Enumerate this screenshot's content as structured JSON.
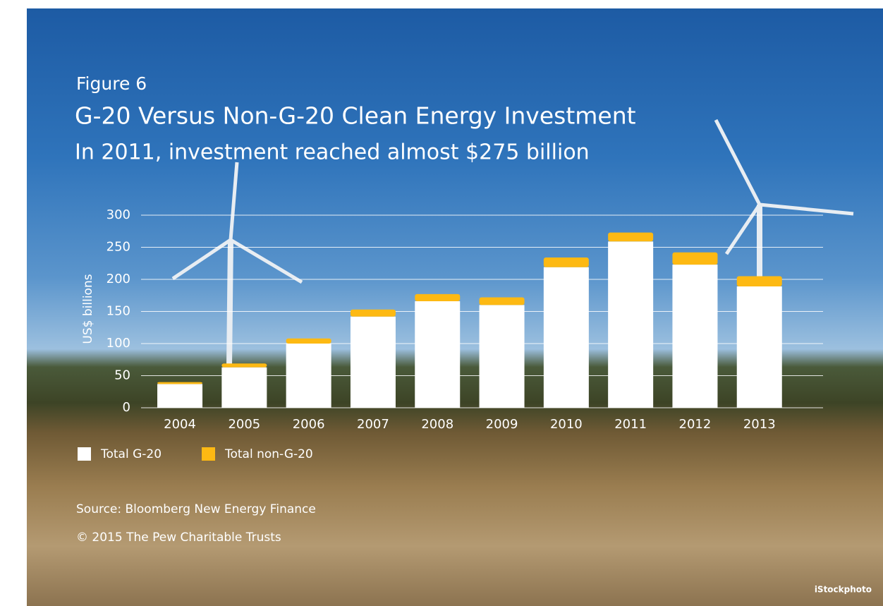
{
  "chart_data": {
    "type": "stacked-bar",
    "figure_label": "Figure 6",
    "title": "G-20 Versus Non-G-20 Clean Energy Investment",
    "subtitle": "In 2011, investment reached almost $275 billion",
    "y_label": "US$ billions",
    "categories": [
      "2004",
      "2005",
      "2006",
      "2007",
      "2008",
      "2009",
      "2010",
      "2011",
      "2012",
      "2013"
    ],
    "series": [
      {
        "name": "Total G-20",
        "color": "#ffffff",
        "values": [
          37,
          63,
          100,
          142,
          166,
          160,
          219,
          259,
          223,
          189
        ]
      },
      {
        "name": "Total non-G-20",
        "color": "#fdb913",
        "values": [
          3,
          6,
          8,
          11,
          11,
          12,
          15,
          14,
          19,
          16
        ]
      }
    ],
    "ylim": [
      0,
      300
    ],
    "yticks": [
      0,
      50,
      100,
      150,
      200,
      250,
      300
    ],
    "grid": true,
    "source": "Source: Bloomberg New Energy Finance",
    "copyright": "© 2015 The Pew Charitable Trusts",
    "credit": "iStockphoto"
  }
}
